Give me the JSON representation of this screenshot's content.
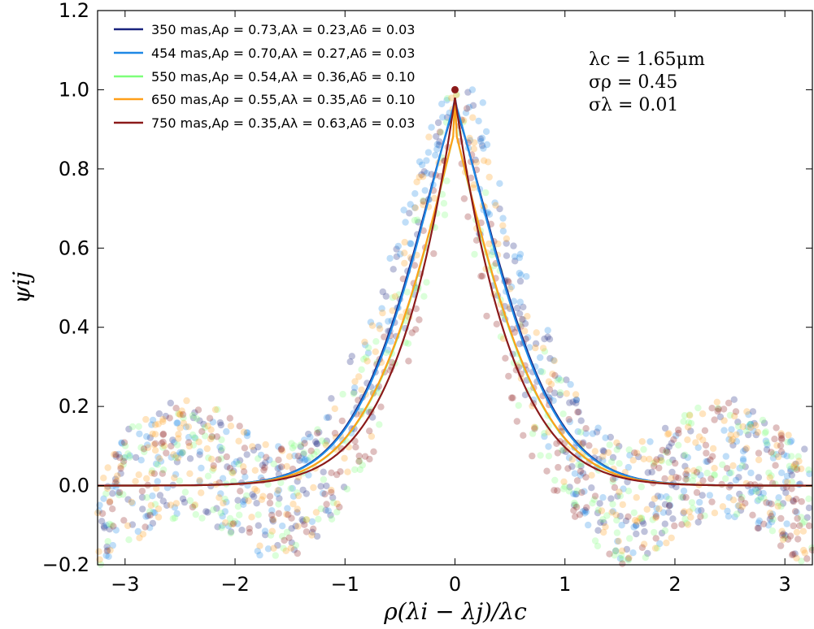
{
  "chart_data": {
    "type": "line",
    "title": "",
    "xlabel": "ρ(λi − λj)/λc",
    "ylabel": "ψij",
    "xlim": [
      -3.25,
      3.25
    ],
    "ylim": [
      -0.2,
      1.2
    ],
    "xticks": [
      -3,
      -2,
      -1,
      0,
      1,
      2,
      3
    ],
    "xtick_labels": [
      "−3",
      "−2",
      "−1",
      "0",
      "1",
      "2",
      "3"
    ],
    "yticks": [
      -0.2,
      0.0,
      0.2,
      0.4,
      0.6,
      0.8,
      1.0,
      1.2
    ],
    "ytick_labels": [
      "−0.2",
      "0.0",
      "0.2",
      "0.4",
      "0.6",
      "0.8",
      "1.0",
      "1.2"
    ],
    "grid": false,
    "legend_position": "top-left",
    "series": [
      {
        "name": "350 mas",
        "label": "350 mas,Aρ = 0.73,Aλ = 0.23,Aδ = 0.03",
        "color": "#1a237e",
        "A_rho": 0.73,
        "A_lambda": 0.23,
        "A_delta": 0.03
      },
      {
        "name": "454 mas",
        "label": "454 mas,Aρ = 0.70,Aλ = 0.27,Aδ = 0.03",
        "color": "#1e88e5",
        "A_rho": 0.7,
        "A_lambda": 0.27,
        "A_delta": 0.03
      },
      {
        "name": "550 mas",
        "label": "550 mas,Aρ = 0.54,Aλ = 0.36,Aδ = 0.10",
        "color": "#7dff7a",
        "A_rho": 0.54,
        "A_lambda": 0.36,
        "A_delta": 0.1
      },
      {
        "name": "650 mas",
        "label": "650 mas,Aρ = 0.55,Aλ = 0.35,Aδ = 0.10",
        "color": "#ff9f1a",
        "A_rho": 0.55,
        "A_lambda": 0.35,
        "A_delta": 0.1
      },
      {
        "name": "750 mas",
        "label": "750 mas,Aρ = 0.35,Aλ = 0.63,Aδ = 0.03",
        "color": "#8b1a1a",
        "A_rho": 0.35,
        "A_lambda": 0.63,
        "A_delta": 0.03
      }
    ],
    "model_widths": {
      "sigma_rho": 0.45,
      "sigma_lambda": 0.01
    },
    "scatter_envelope": {
      "description": "correlation samples per series",
      "x_range": [
        -3.25,
        3.25
      ],
      "y_range": [
        -0.2,
        1.0
      ]
    },
    "peak_point": {
      "x": 0.0,
      "y": 1.0,
      "color": "#8b1a1a"
    },
    "annotations": [
      "λc = 1.65μm",
      "σρ = 0.45",
      "σλ = 0.01"
    ]
  }
}
